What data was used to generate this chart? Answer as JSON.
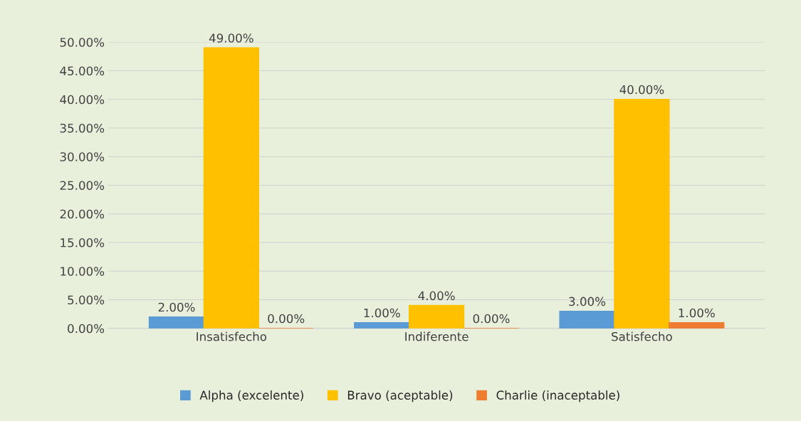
{
  "chart_data": {
    "type": "bar",
    "categories": [
      "Insatisfecho",
      "Indiferente",
      "Satisfecho"
    ],
    "series": [
      {
        "name": "Alpha (excelente)",
        "color": "#5b9bd5",
        "values": [
          2,
          1,
          3
        ],
        "value_labels": [
          "2.00%",
          "1.00%",
          "3.00%"
        ]
      },
      {
        "name": "Bravo (aceptable)",
        "color": "#ffc000",
        "values": [
          49,
          4,
          40
        ],
        "value_labels": [
          "49.00%",
          "4.00%",
          "40.00%"
        ]
      },
      {
        "name": "Charlie (inaceptable)",
        "color": "#ed7d31",
        "values": [
          0,
          0,
          1
        ],
        "value_labels": [
          "0.00%",
          "0.00%",
          "1.00%"
        ]
      }
    ],
    "ylim": [
      0,
      50
    ],
    "yticks": [
      {
        "value": 0,
        "label": "0.00%"
      },
      {
        "value": 5,
        "label": "5.00%"
      },
      {
        "value": 10,
        "label": "10.00%"
      },
      {
        "value": 15,
        "label": "15.00%"
      },
      {
        "value": 20,
        "label": "20.00%"
      },
      {
        "value": 25,
        "label": "25.00%"
      },
      {
        "value": 30,
        "label": "30.00%"
      },
      {
        "value": 35,
        "label": "35.00%"
      },
      {
        "value": 40,
        "label": "40.00%"
      },
      {
        "value": 45,
        "label": "45.00%"
      },
      {
        "value": 50,
        "label": "50.00%"
      }
    ],
    "grid": "y",
    "legend": "bottom"
  }
}
